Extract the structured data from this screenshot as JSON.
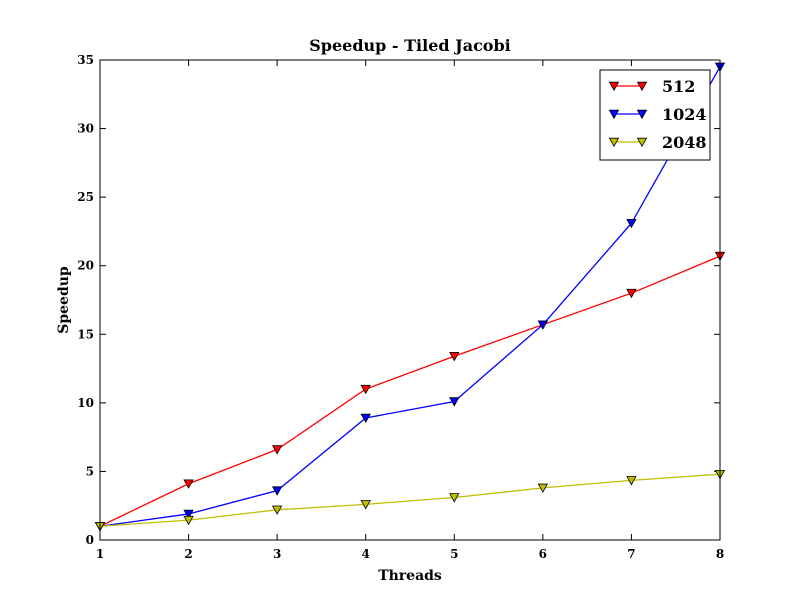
{
  "chart_data": {
    "type": "line",
    "title": "Speedup - Tiled Jacobi",
    "xlabel": "Threads",
    "ylabel": "Speedup",
    "x": [
      1,
      2,
      3,
      4,
      5,
      6,
      7,
      8
    ],
    "xlim": [
      1,
      8
    ],
    "ylim": [
      0,
      35
    ],
    "xticks": [
      "1",
      "2",
      "3",
      "4",
      "5",
      "6",
      "7",
      "8"
    ],
    "yticks": [
      "0",
      "5",
      "10",
      "15",
      "20",
      "25",
      "30",
      "35"
    ],
    "grid": false,
    "legend_position": "top-right",
    "marker": "triangle-down",
    "series": [
      {
        "name": "512",
        "color": "#ff0000",
        "values": [
          1.0,
          4.1,
          6.6,
          11.0,
          13.4,
          15.7,
          18.0,
          20.7
        ]
      },
      {
        "name": "1024",
        "color": "#0000ff",
        "values": [
          1.0,
          1.9,
          3.6,
          8.9,
          10.1,
          15.7,
          23.1,
          34.5
        ]
      },
      {
        "name": "2048",
        "color": "#bfbf00",
        "values": [
          1.0,
          1.45,
          2.2,
          2.6,
          3.1,
          3.8,
          4.35,
          4.8
        ]
      }
    ]
  }
}
